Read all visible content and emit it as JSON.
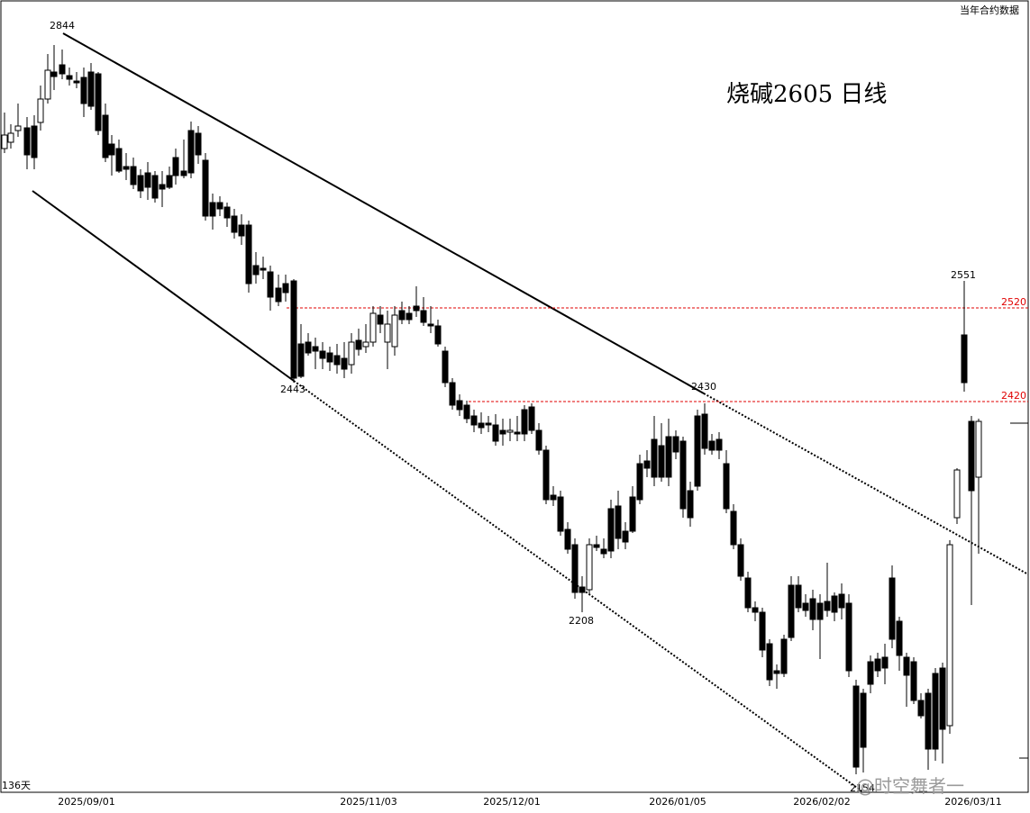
{
  "chart_data": {
    "type": "candlestick",
    "title": "烧碱2605  日线",
    "header_right": "当年合约数据",
    "bars_count_label": "136天",
    "x_ticks": [
      "2025/09/01",
      "2025/11/03",
      "2025/12/01",
      "2026/01/05",
      "2026/02/02",
      "2026/03/11"
    ],
    "price_annotations": [
      {
        "label": "2844",
        "value": 2844
      },
      {
        "label": "2443",
        "value": 2443
      },
      {
        "label": "2430",
        "value": 2430
      },
      {
        "label": "2208",
        "value": 2208
      },
      {
        "label": "2551",
        "value": 2551
      },
      {
        "label": "2154",
        "value": 2154
      }
    ],
    "horizontal_levels": [
      {
        "label": "2520",
        "value": 2520,
        "color": "#e00000"
      },
      {
        "label": "2420",
        "value": 2420,
        "color": "#e00000"
      }
    ],
    "up_color": "#ffffff",
    "down_color": "#000000",
    "watermark": "@时空舞者一"
  }
}
